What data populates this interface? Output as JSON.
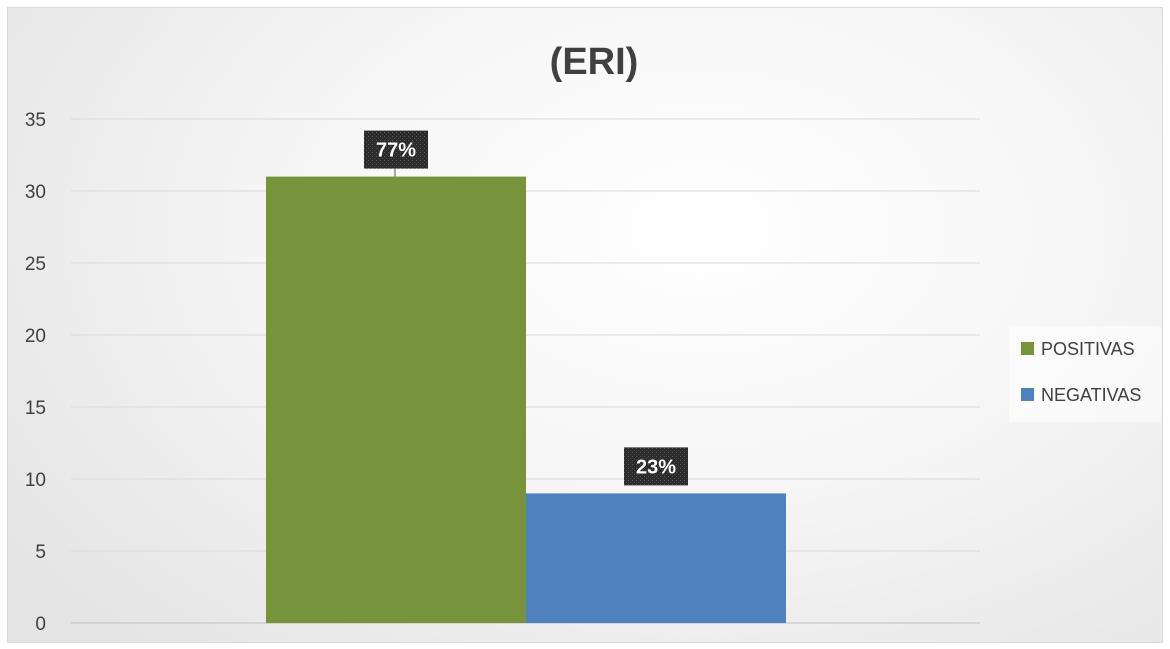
{
  "chart_data": {
    "type": "bar",
    "title": "(ERI)",
    "xlabel": "",
    "ylabel": "",
    "ylim": [
      0,
      35
    ],
    "yticks": [
      0,
      5,
      10,
      15,
      20,
      25,
      30,
      35
    ],
    "grid": true,
    "legend_position": "right",
    "series": [
      {
        "name": "POSITIVAS",
        "value": 31,
        "label": "77%",
        "color": "#77933c"
      },
      {
        "name": "NEGATIVAS",
        "value": 9,
        "label": "23%",
        "color": "#4f81bd"
      }
    ]
  }
}
